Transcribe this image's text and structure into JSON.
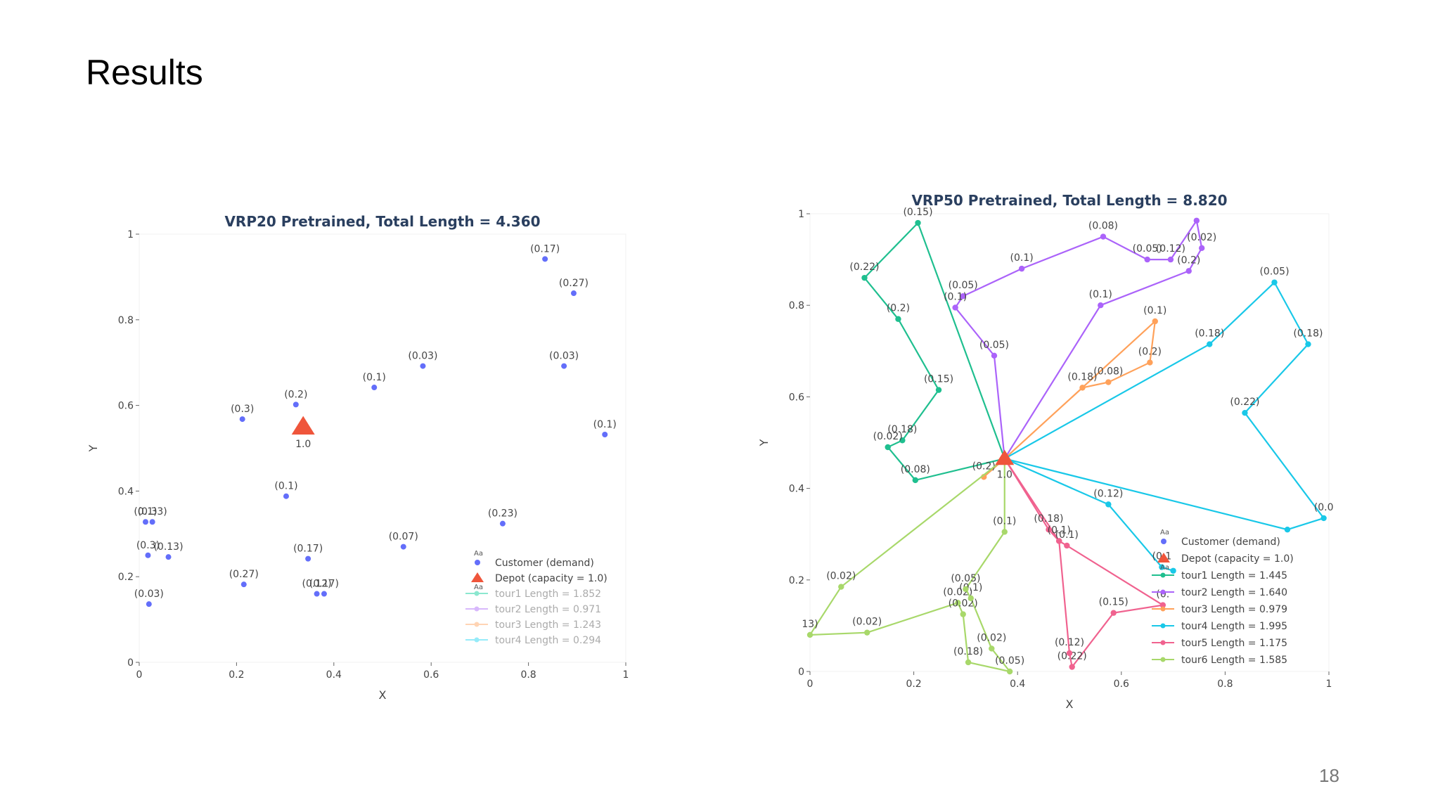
{
  "slide": {
    "title": "Results",
    "page_number": "18"
  },
  "chart_data": [
    {
      "type": "scatter",
      "title": "VRP20 Pretrained, Total Length = 4.360",
      "xlabel": "X",
      "ylabel": "Y",
      "xlim": [
        0,
        1
      ],
      "ylim": [
        0,
        1
      ],
      "xticks": [
        "0",
        "0.2",
        "0.4",
        "0.6",
        "0.8",
        "1"
      ],
      "yticks": [
        "0",
        "0.2",
        "0.4",
        "0.6",
        "0.8",
        "1"
      ],
      "grid": false,
      "legend_position": "bottom-right",
      "colors": {
        "customer": "#636efa",
        "depot": "#ef553b",
        "tours": [
          "#00cc96",
          "#ab63fa",
          "#ffa15a",
          "#19d3f3"
        ]
      },
      "depot": {
        "x": 0.337,
        "y": 0.55,
        "label": "1.0"
      },
      "customers": [
        {
          "x": 0.834,
          "y": 0.942,
          "label": "(0.17)"
        },
        {
          "x": 0.893,
          "y": 0.862,
          "label": "(0.27)"
        },
        {
          "x": 0.583,
          "y": 0.692,
          "label": "(0.03)"
        },
        {
          "x": 0.873,
          "y": 0.692,
          "label": "(0.03)"
        },
        {
          "x": 0.483,
          "y": 0.642,
          "label": "(0.1)"
        },
        {
          "x": 0.322,
          "y": 0.602,
          "label": "(0.2)"
        },
        {
          "x": 0.212,
          "y": 0.568,
          "label": "(0.3)"
        },
        {
          "x": 0.957,
          "y": 0.532,
          "label": "(0.1)"
        },
        {
          "x": 0.302,
          "y": 0.388,
          "label": "(0.1)"
        },
        {
          "x": 0.013,
          "y": 0.328,
          "label": "(0.1)"
        },
        {
          "x": 0.027,
          "y": 0.328,
          "label": "(0.33)"
        },
        {
          "x": 0.747,
          "y": 0.324,
          "label": "(0.23)"
        },
        {
          "x": 0.543,
          "y": 0.27,
          "label": "(0.07)"
        },
        {
          "x": 0.018,
          "y": 0.25,
          "label": "(0.3)"
        },
        {
          "x": 0.06,
          "y": 0.246,
          "label": "(0.13)"
        },
        {
          "x": 0.347,
          "y": 0.242,
          "label": "(0.17)"
        },
        {
          "x": 0.215,
          "y": 0.182,
          "label": "(0.27)"
        },
        {
          "x": 0.365,
          "y": 0.16,
          "label": "(0.12)"
        },
        {
          "x": 0.38,
          "y": 0.16,
          "label": "(0.17)"
        },
        {
          "x": 0.02,
          "y": 0.136,
          "label": "(0.03)"
        }
      ],
      "legend": [
        "Customer (demand)",
        "Depot (capacity = 1.0)",
        "tour1 Length = 1.852",
        "tour2 Length = 0.971",
        "tour3 Length = 1.243",
        "tour4 Length = 0.294"
      ],
      "legend_faded_from": 2
    },
    {
      "type": "line",
      "title": "VRP50 Pretrained, Total Length = 8.820",
      "xlabel": "X",
      "ylabel": "Y",
      "xlim": [
        0,
        1
      ],
      "ylim": [
        0,
        1
      ],
      "xticks": [
        "0",
        "0.2",
        "0.4",
        "0.6",
        "0.8",
        "1"
      ],
      "yticks": [
        "0",
        "0.2",
        "0.4",
        "0.6",
        "0.8",
        "1"
      ],
      "grid": false,
      "legend_position": "bottom-right",
      "colors": {
        "customer": "#636efa",
        "depot": "#ef553b"
      },
      "depot": {
        "x": 0.375,
        "y": 0.465,
        "label": "1.0"
      },
      "legend": [
        "Customer (demand)",
        "Depot (capacity = 1.0)",
        "tour1 Length = 1.445",
        "tour2 Length = 1.640",
        "tour3 Length = 0.979",
        "tour4 Length = 1.995",
        "tour5 Length = 1.175",
        "tour6 Length = 1.585"
      ],
      "legend_faded_from": 8,
      "series": [
        {
          "name": "tour1 Length = 1.445",
          "color": "#1fbf8f",
          "points": [
            {
              "x": 0.375,
              "y": 0.465,
              "label": ""
            },
            {
              "x": 0.208,
              "y": 0.98,
              "label": "(0.15)"
            },
            {
              "x": 0.105,
              "y": 0.86,
              "label": "(0.22)"
            },
            {
              "x": 0.17,
              "y": 0.77,
              "label": "(0.2)"
            },
            {
              "x": 0.248,
              "y": 0.615,
              "label": "(0.15)"
            },
            {
              "x": 0.178,
              "y": 0.505,
              "label": "(0.18)"
            },
            {
              "x": 0.15,
              "y": 0.49,
              "label": "(0.02)"
            },
            {
              "x": 0.203,
              "y": 0.418,
              "label": "(0.08)"
            },
            {
              "x": 0.375,
              "y": 0.465,
              "label": ""
            }
          ]
        },
        {
          "name": "tour2 Length = 1.640",
          "color": "#ab63fa",
          "points": [
            {
              "x": 0.375,
              "y": 0.465,
              "label": ""
            },
            {
              "x": 0.56,
              "y": 0.8,
              "label": "(0.1)"
            },
            {
              "x": 0.73,
              "y": 0.875,
              "label": "(0.2)"
            },
            {
              "x": 0.755,
              "y": 0.925,
              "label": "(0.02)"
            },
            {
              "x": 0.745,
              "y": 0.985,
              "label": ""
            },
            {
              "x": 0.695,
              "y": 0.9,
              "label": "(0.12)"
            },
            {
              "x": 0.65,
              "y": 0.9,
              "label": "(0.05)"
            },
            {
              "x": 0.565,
              "y": 0.95,
              "label": "(0.08)"
            },
            {
              "x": 0.408,
              "y": 0.88,
              "label": "(0.1)"
            },
            {
              "x": 0.295,
              "y": 0.82,
              "label": "(0.05)"
            },
            {
              "x": 0.28,
              "y": 0.795,
              "label": "(0.1)"
            },
            {
              "x": 0.355,
              "y": 0.69,
              "label": "(0.05)"
            },
            {
              "x": 0.375,
              "y": 0.465,
              "label": ""
            }
          ]
        },
        {
          "name": "tour3 Length = 0.979",
          "color": "#ffa15a",
          "points": [
            {
              "x": 0.375,
              "y": 0.465,
              "label": ""
            },
            {
              "x": 0.525,
              "y": 0.62,
              "label": "(0.18)"
            },
            {
              "x": 0.575,
              "y": 0.632,
              "label": "(0.08)"
            },
            {
              "x": 0.655,
              "y": 0.675,
              "label": "(0.2)"
            },
            {
              "x": 0.665,
              "y": 0.765,
              "label": "(0.1)"
            },
            {
              "x": 0.375,
              "y": 0.465,
              "label": ""
            },
            {
              "x": 0.335,
              "y": 0.425,
              "label": "(0.2)"
            },
            {
              "x": 0.375,
              "y": 0.465,
              "label": ""
            }
          ]
        },
        {
          "name": "tour4 Length = 1.995",
          "color": "#19c8e8",
          "points": [
            {
              "x": 0.375,
              "y": 0.465,
              "label": ""
            },
            {
              "x": 0.77,
              "y": 0.715,
              "label": "(0.18)"
            },
            {
              "x": 0.895,
              "y": 0.85,
              "label": "(0.05)"
            },
            {
              "x": 0.96,
              "y": 0.715,
              "label": "(0.18)"
            },
            {
              "x": 0.838,
              "y": 0.565,
              "label": "(0.22)"
            },
            {
              "x": 0.99,
              "y": 0.335,
              "label": "(0.0"
            },
            {
              "x": 0.92,
              "y": 0.31,
              "label": ""
            },
            {
              "x": 0.375,
              "y": 0.465,
              "label": ""
            },
            {
              "x": 0.575,
              "y": 0.365,
              "label": "(0.12)"
            },
            {
              "x": 0.678,
              "y": 0.228,
              "label": "(0.1"
            },
            {
              "x": 0.7,
              "y": 0.22,
              "label": ""
            }
          ]
        },
        {
          "name": "tour5 Length = 1.175",
          "color": "#f0628f",
          "points": [
            {
              "x": 0.375,
              "y": 0.465,
              "label": ""
            },
            {
              "x": 0.46,
              "y": 0.31,
              "label": "(0.18)"
            },
            {
              "x": 0.48,
              "y": 0.285,
              "label": "(0.1)"
            },
            {
              "x": 0.495,
              "y": 0.275,
              "label": "(0.1)"
            },
            {
              "x": 0.68,
              "y": 0.145,
              "label": "(0."
            },
            {
              "x": 0.585,
              "y": 0.128,
              "label": "(0.15)"
            },
            {
              "x": 0.505,
              "y": 0.01,
              "label": "(0.22)"
            },
            {
              "x": 0.5,
              "y": 0.04,
              "label": "(0.12)"
            },
            {
              "x": 0.48,
              "y": 0.285,
              "label": ""
            },
            {
              "x": 0.375,
              "y": 0.465,
              "label": ""
            }
          ]
        },
        {
          "name": "tour6 Length = 1.585",
          "color": "#a8d86a",
          "points": [
            {
              "x": 0.375,
              "y": 0.465,
              "label": ""
            },
            {
              "x": 0.06,
              "y": 0.185,
              "label": "(0.02)"
            },
            {
              "x": 0.0,
              "y": 0.08,
              "label": "13)"
            },
            {
              "x": 0.11,
              "y": 0.085,
              "label": "(0.02)"
            },
            {
              "x": 0.285,
              "y": 0.15,
              "label": "(0.02)"
            },
            {
              "x": 0.295,
              "y": 0.125,
              "label": "(0.02)"
            },
            {
              "x": 0.305,
              "y": 0.02,
              "label": "(0.18)"
            },
            {
              "x": 0.385,
              "y": 0.0,
              "label": "(0.05)"
            },
            {
              "x": 0.35,
              "y": 0.05,
              "label": "(0.02)"
            },
            {
              "x": 0.31,
              "y": 0.16,
              "label": "(0.1)"
            },
            {
              "x": 0.3,
              "y": 0.18,
              "label": "(0.05)"
            },
            {
              "x": 0.375,
              "y": 0.305,
              "label": "(0.1)"
            },
            {
              "x": 0.375,
              "y": 0.465,
              "label": ""
            }
          ]
        }
      ]
    }
  ]
}
